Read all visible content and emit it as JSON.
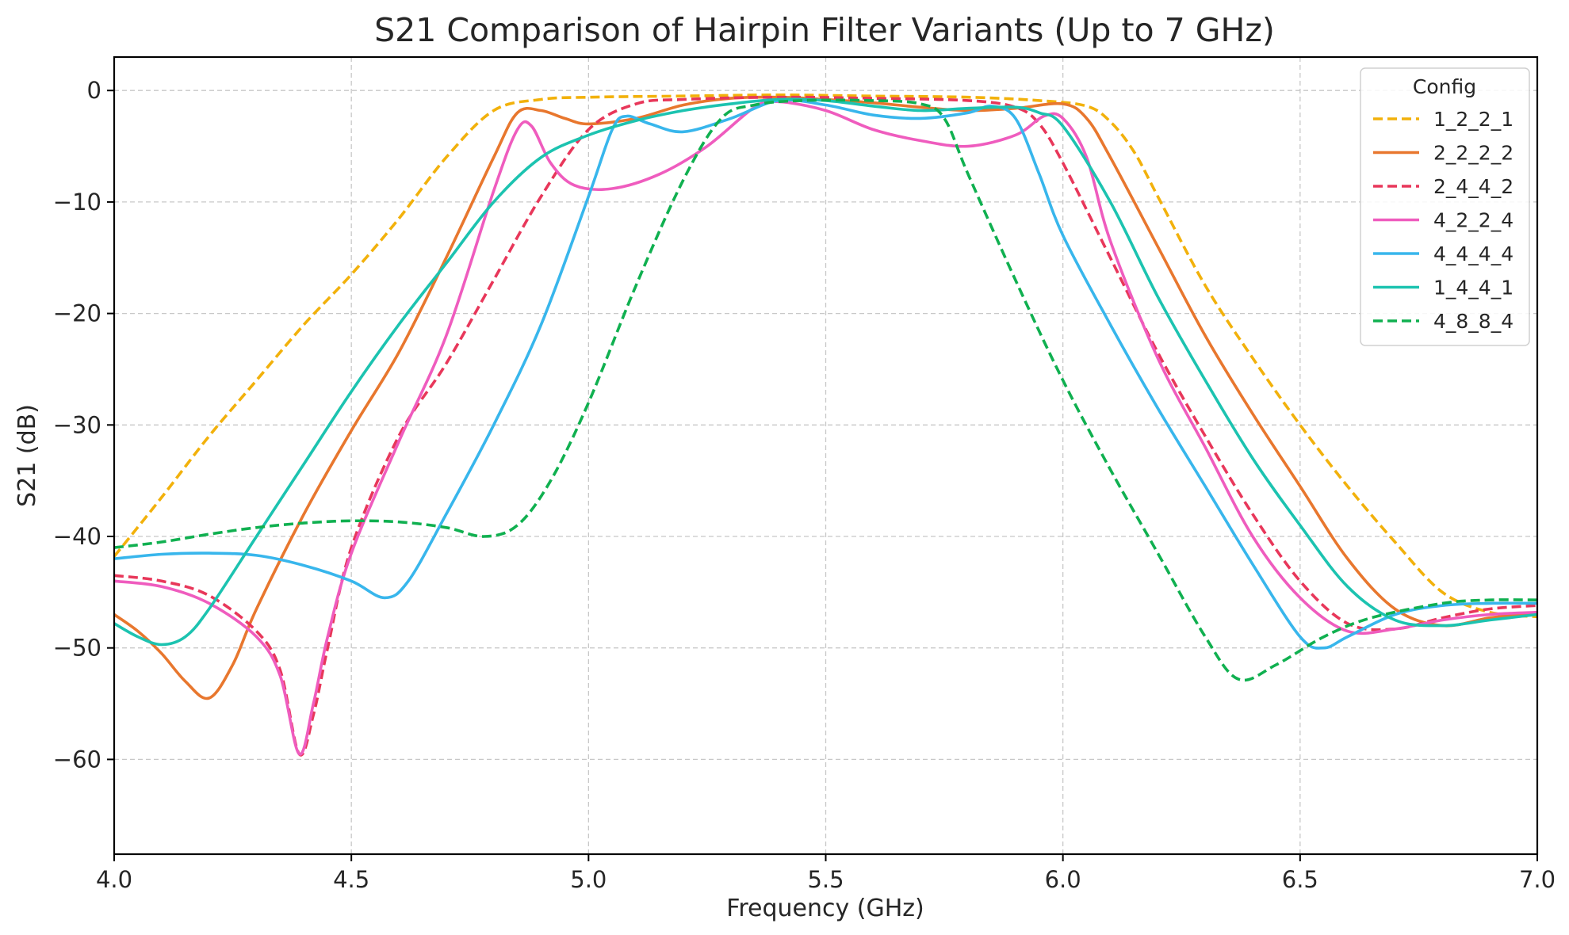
{
  "chart_data": {
    "type": "line",
    "title": "S21 Comparison of Hairpin Filter Variants (Up to 7 GHz)",
    "xlabel": "Frequency (GHz)",
    "ylabel": "S21 (dB)",
    "xlim": [
      4.0,
      7.0
    ],
    "ylim": [
      -68.5,
      3.0
    ],
    "xticks": [
      4.0,
      4.5,
      5.0,
      5.5,
      6.0,
      6.5,
      7.0
    ],
    "xtick_labels": [
      "4.0",
      "4.5",
      "5.0",
      "5.5",
      "6.0",
      "6.5",
      "7.0"
    ],
    "yticks": [
      0,
      -10,
      -20,
      -30,
      -40,
      -50,
      -60
    ],
    "ytick_labels": [
      "0",
      "−10",
      "−20",
      "−30",
      "−40",
      "−50",
      "−60"
    ],
    "grid": true,
    "legend": {
      "title": "Config",
      "placement": "top-right"
    },
    "series": [
      {
        "name": "1_2_2_1",
        "color": "#f2b10b",
        "dashed": true,
        "points": [
          [
            4.0,
            -41.8
          ],
          [
            4.1,
            -36.5
          ],
          [
            4.2,
            -31.0
          ],
          [
            4.3,
            -26.0
          ],
          [
            4.4,
            -21.0
          ],
          [
            4.5,
            -16.5
          ],
          [
            4.6,
            -11.5
          ],
          [
            4.7,
            -6.0
          ],
          [
            4.8,
            -1.8
          ],
          [
            4.9,
            -0.8
          ],
          [
            5.0,
            -0.6
          ],
          [
            5.2,
            -0.5
          ],
          [
            5.4,
            -0.4
          ],
          [
            5.6,
            -0.5
          ],
          [
            5.8,
            -0.6
          ],
          [
            5.95,
            -0.9
          ],
          [
            6.05,
            -1.4
          ],
          [
            6.1,
            -2.8
          ],
          [
            6.15,
            -5.5
          ],
          [
            6.2,
            -9.5
          ],
          [
            6.3,
            -17.5
          ],
          [
            6.4,
            -24.0
          ],
          [
            6.5,
            -30.0
          ],
          [
            6.6,
            -35.5
          ],
          [
            6.7,
            -40.5
          ],
          [
            6.8,
            -45.0
          ],
          [
            6.9,
            -46.8
          ],
          [
            7.0,
            -47.2
          ]
        ]
      },
      {
        "name": "2_2_2_2",
        "color": "#e8772e",
        "dashed": false,
        "points": [
          [
            4.0,
            -47.0
          ],
          [
            4.05,
            -48.5
          ],
          [
            4.1,
            -50.5
          ],
          [
            4.15,
            -53.0
          ],
          [
            4.2,
            -54.5
          ],
          [
            4.25,
            -51.5
          ],
          [
            4.3,
            -46.5
          ],
          [
            4.4,
            -38.0
          ],
          [
            4.5,
            -30.5
          ],
          [
            4.6,
            -23.5
          ],
          [
            4.7,
            -15.0
          ],
          [
            4.8,
            -6.0
          ],
          [
            4.85,
            -2.0
          ],
          [
            4.9,
            -1.8
          ],
          [
            4.95,
            -2.5
          ],
          [
            5.0,
            -3.0
          ],
          [
            5.1,
            -2.5
          ],
          [
            5.2,
            -1.3
          ],
          [
            5.3,
            -0.7
          ],
          [
            5.4,
            -0.6
          ],
          [
            5.5,
            -0.8
          ],
          [
            5.6,
            -1.1
          ],
          [
            5.7,
            -1.5
          ],
          [
            5.8,
            -1.8
          ],
          [
            5.9,
            -1.6
          ],
          [
            6.0,
            -1.2
          ],
          [
            6.05,
            -2.5
          ],
          [
            6.1,
            -6.0
          ],
          [
            6.2,
            -14.0
          ],
          [
            6.3,
            -22.0
          ],
          [
            6.4,
            -29.0
          ],
          [
            6.5,
            -35.5
          ],
          [
            6.6,
            -42.0
          ],
          [
            6.7,
            -46.5
          ],
          [
            6.8,
            -48.0
          ],
          [
            6.9,
            -47.3
          ],
          [
            7.0,
            -46.8
          ]
        ]
      },
      {
        "name": "2_4_4_2",
        "color": "#e8375a",
        "dashed": true,
        "points": [
          [
            4.0,
            -43.5
          ],
          [
            4.1,
            -44.0
          ],
          [
            4.2,
            -45.3
          ],
          [
            4.3,
            -48.5
          ],
          [
            4.35,
            -52.0
          ],
          [
            4.39,
            -59.5
          ],
          [
            4.42,
            -56.0
          ],
          [
            4.45,
            -50.0
          ],
          [
            4.5,
            -41.0
          ],
          [
            4.6,
            -31.0
          ],
          [
            4.7,
            -24.5
          ],
          [
            4.8,
            -17.0
          ],
          [
            4.9,
            -9.5
          ],
          [
            5.0,
            -3.5
          ],
          [
            5.1,
            -1.2
          ],
          [
            5.2,
            -0.8
          ],
          [
            5.4,
            -0.6
          ],
          [
            5.6,
            -0.7
          ],
          [
            5.8,
            -0.9
          ],
          [
            5.9,
            -1.5
          ],
          [
            5.95,
            -3.0
          ],
          [
            6.0,
            -6.5
          ],
          [
            6.1,
            -15.0
          ],
          [
            6.2,
            -23.5
          ],
          [
            6.3,
            -31.0
          ],
          [
            6.4,
            -38.0
          ],
          [
            6.5,
            -44.0
          ],
          [
            6.6,
            -47.8
          ],
          [
            6.7,
            -48.3
          ],
          [
            6.8,
            -47.3
          ],
          [
            6.9,
            -46.5
          ],
          [
            7.0,
            -46.2
          ]
        ]
      },
      {
        "name": "4_2_2_4",
        "color": "#ef5cbe",
        "dashed": false,
        "points": [
          [
            4.0,
            -44.0
          ],
          [
            4.1,
            -44.5
          ],
          [
            4.2,
            -46.0
          ],
          [
            4.3,
            -49.0
          ],
          [
            4.35,
            -52.5
          ],
          [
            4.39,
            -59.5
          ],
          [
            4.42,
            -55.0
          ],
          [
            4.45,
            -49.0
          ],
          [
            4.5,
            -41.5
          ],
          [
            4.6,
            -31.5
          ],
          [
            4.7,
            -22.0
          ],
          [
            4.8,
            -9.0
          ],
          [
            4.85,
            -3.5
          ],
          [
            4.88,
            -3.2
          ],
          [
            4.92,
            -6.5
          ],
          [
            4.97,
            -8.5
          ],
          [
            5.05,
            -8.8
          ],
          [
            5.15,
            -7.5
          ],
          [
            5.25,
            -5.0
          ],
          [
            5.35,
            -1.5
          ],
          [
            5.4,
            -1.0
          ],
          [
            5.5,
            -1.8
          ],
          [
            5.6,
            -3.5
          ],
          [
            5.7,
            -4.5
          ],
          [
            5.8,
            -5.0
          ],
          [
            5.9,
            -4.0
          ],
          [
            5.96,
            -2.3
          ],
          [
            6.0,
            -2.5
          ],
          [
            6.05,
            -6.0
          ],
          [
            6.1,
            -13.5
          ],
          [
            6.2,
            -24.0
          ],
          [
            6.3,
            -32.0
          ],
          [
            6.4,
            -40.0
          ],
          [
            6.5,
            -45.5
          ],
          [
            6.6,
            -48.5
          ],
          [
            6.7,
            -48.3
          ],
          [
            6.8,
            -47.5
          ],
          [
            6.9,
            -47.0
          ],
          [
            7.0,
            -46.8
          ]
        ]
      },
      {
        "name": "4_4_4_4",
        "color": "#38b6ec",
        "dashed": false,
        "points": [
          [
            4.0,
            -42.0
          ],
          [
            4.1,
            -41.6
          ],
          [
            4.2,
            -41.5
          ],
          [
            4.3,
            -41.7
          ],
          [
            4.4,
            -42.6
          ],
          [
            4.5,
            -44.0
          ],
          [
            4.57,
            -45.5
          ],
          [
            4.62,
            -44.0
          ],
          [
            4.7,
            -38.0
          ],
          [
            4.8,
            -30.0
          ],
          [
            4.9,
            -21.0
          ],
          [
            5.0,
            -9.5
          ],
          [
            5.05,
            -3.5
          ],
          [
            5.08,
            -2.3
          ],
          [
            5.13,
            -3.0
          ],
          [
            5.2,
            -3.7
          ],
          [
            5.3,
            -2.5
          ],
          [
            5.4,
            -0.9
          ],
          [
            5.5,
            -1.3
          ],
          [
            5.6,
            -2.2
          ],
          [
            5.7,
            -2.5
          ],
          [
            5.8,
            -2.0
          ],
          [
            5.85,
            -1.4
          ],
          [
            5.9,
            -2.5
          ],
          [
            5.95,
            -7.5
          ],
          [
            6.0,
            -13.0
          ],
          [
            6.1,
            -21.0
          ],
          [
            6.2,
            -28.5
          ],
          [
            6.3,
            -35.5
          ],
          [
            6.4,
            -42.5
          ],
          [
            6.5,
            -49.0
          ],
          [
            6.55,
            -50.0
          ],
          [
            6.6,
            -49.0
          ],
          [
            6.7,
            -47.0
          ],
          [
            6.8,
            -46.2
          ],
          [
            6.9,
            -46.0
          ],
          [
            7.0,
            -46.0
          ]
        ]
      },
      {
        "name": "1_4_4_1",
        "color": "#1cc3b0",
        "dashed": false,
        "points": [
          [
            4.0,
            -47.8
          ],
          [
            4.05,
            -49.0
          ],
          [
            4.1,
            -49.7
          ],
          [
            4.15,
            -49.0
          ],
          [
            4.2,
            -46.5
          ],
          [
            4.3,
            -40.0
          ],
          [
            4.4,
            -33.5
          ],
          [
            4.5,
            -27.0
          ],
          [
            4.6,
            -21.0
          ],
          [
            4.7,
            -15.5
          ],
          [
            4.8,
            -10.0
          ],
          [
            4.9,
            -6.0
          ],
          [
            5.0,
            -4.0
          ],
          [
            5.1,
            -2.7
          ],
          [
            5.2,
            -1.8
          ],
          [
            5.3,
            -1.2
          ],
          [
            5.4,
            -0.8
          ],
          [
            5.5,
            -0.9
          ],
          [
            5.6,
            -1.4
          ],
          [
            5.7,
            -1.8
          ],
          [
            5.8,
            -1.6
          ],
          [
            5.9,
            -1.5
          ],
          [
            5.95,
            -2.0
          ],
          [
            6.0,
            -3.2
          ],
          [
            6.1,
            -10.0
          ],
          [
            6.2,
            -18.5
          ],
          [
            6.3,
            -26.0
          ],
          [
            6.4,
            -33.0
          ],
          [
            6.5,
            -39.0
          ],
          [
            6.6,
            -44.5
          ],
          [
            6.7,
            -47.5
          ],
          [
            6.8,
            -48.0
          ],
          [
            6.9,
            -47.5
          ],
          [
            7.0,
            -47.0
          ]
        ]
      },
      {
        "name": "4_8_8_4",
        "color": "#10b050",
        "dashed": true,
        "points": [
          [
            4.0,
            -41.0
          ],
          [
            4.1,
            -40.5
          ],
          [
            4.2,
            -39.8
          ],
          [
            4.3,
            -39.2
          ],
          [
            4.4,
            -38.8
          ],
          [
            4.5,
            -38.6
          ],
          [
            4.6,
            -38.7
          ],
          [
            4.7,
            -39.2
          ],
          [
            4.78,
            -40.0
          ],
          [
            4.85,
            -39.0
          ],
          [
            4.92,
            -35.0
          ],
          [
            5.0,
            -28.0
          ],
          [
            5.1,
            -17.5
          ],
          [
            5.2,
            -8.0
          ],
          [
            5.28,
            -2.5
          ],
          [
            5.35,
            -1.3
          ],
          [
            5.45,
            -0.9
          ],
          [
            5.6,
            -0.9
          ],
          [
            5.7,
            -1.2
          ],
          [
            5.75,
            -2.5
          ],
          [
            5.8,
            -7.5
          ],
          [
            5.9,
            -17.0
          ],
          [
            6.0,
            -26.0
          ],
          [
            6.1,
            -34.0
          ],
          [
            6.2,
            -41.5
          ],
          [
            6.3,
            -49.0
          ],
          [
            6.37,
            -52.8
          ],
          [
            6.45,
            -51.5
          ],
          [
            6.55,
            -49.0
          ],
          [
            6.65,
            -47.3
          ],
          [
            6.8,
            -46.0
          ],
          [
            6.9,
            -45.7
          ],
          [
            7.0,
            -45.7
          ]
        ]
      }
    ]
  }
}
